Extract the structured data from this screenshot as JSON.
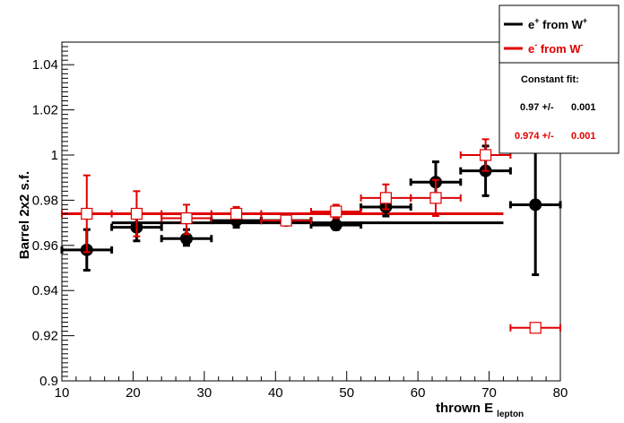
{
  "chart_data": {
    "type": "scatter",
    "title": "",
    "xlabel": "thrown E",
    "xlabel_sub": "lepton",
    "ylabel": "Barrel 2x2 s.f.",
    "xlim": [
      10,
      80
    ],
    "ylim": [
      0.9,
      1.05
    ],
    "xticks": [
      10,
      20,
      30,
      40,
      50,
      60,
      70,
      80
    ],
    "yticks": [
      0.9,
      0.92,
      0.94,
      0.96,
      0.98,
      1,
      1.02,
      1.04
    ],
    "ytick_labels": [
      "0.9",
      "0.92",
      "0.94",
      "0.96",
      "0.98",
      "1",
      "1.02",
      "1.04"
    ],
    "grid": false,
    "legend_position": "top-right",
    "series": [
      {
        "name_main": "e",
        "name_sup": "+",
        "name_mid": " from W",
        "name_sup2": "+",
        "color": "#000000",
        "marker": "filled-circle",
        "points": [
          {
            "x": 13.5,
            "y": 0.958,
            "xerr": 3.5,
            "ylo": 0.949,
            "yhi": 0.967
          },
          {
            "x": 20.5,
            "y": 0.968,
            "xerr": 3.5,
            "ylo": 0.962,
            "yhi": 0.973
          },
          {
            "x": 27.5,
            "y": 0.963,
            "xerr": 3.5,
            "ylo": 0.96,
            "yhi": 0.967
          },
          {
            "x": 34.5,
            "y": 0.971,
            "xerr": 3.5,
            "ylo": 0.968,
            "yhi": 0.973
          },
          {
            "x": 41.5,
            "y": 0.971,
            "xerr": 3.5,
            "ylo": 0.969,
            "yhi": 0.973
          },
          {
            "x": 48.5,
            "y": 0.969,
            "xerr": 3.5,
            "ylo": 0.967,
            "yhi": 0.972
          },
          {
            "x": 55.5,
            "y": 0.977,
            "xerr": 3.5,
            "ylo": 0.973,
            "yhi": 0.981
          },
          {
            "x": 62.5,
            "y": 0.988,
            "xerr": 3.5,
            "ylo": 0.98,
            "yhi": 0.997
          },
          {
            "x": 69.5,
            "y": 0.993,
            "xerr": 3.5,
            "ylo": 0.982,
            "yhi": 1.004
          },
          {
            "x": 76.5,
            "y": 0.978,
            "xerr": 3.5,
            "ylo": 0.947,
            "yhi": 1.009
          }
        ],
        "fit": {
          "value": 0.97,
          "err": 0.001,
          "xmin": 17,
          "xmax": 72
        }
      },
      {
        "name_main": "e",
        "name_sup": "-",
        "name_mid": " from W",
        "name_sup2": "-",
        "color": "#e00000",
        "marker": "open-square",
        "points": [
          {
            "x": 13.5,
            "y": 0.974,
            "xerr": 3.5,
            "ylo": 0.957,
            "yhi": 0.991
          },
          {
            "x": 20.5,
            "y": 0.974,
            "xerr": 3.5,
            "ylo": 0.964,
            "yhi": 0.984
          },
          {
            "x": 27.5,
            "y": 0.972,
            "xerr": 3.5,
            "ylo": 0.965,
            "yhi": 0.978
          },
          {
            "x": 34.5,
            "y": 0.974,
            "xerr": 3.5,
            "ylo": 0.972,
            "yhi": 0.977
          },
          {
            "x": 41.5,
            "y": 0.971,
            "xerr": 3.5,
            "ylo": 0.969,
            "yhi": 0.973
          },
          {
            "x": 48.5,
            "y": 0.975,
            "xerr": 3.5,
            "ylo": 0.972,
            "yhi": 0.978
          },
          {
            "x": 55.5,
            "y": 0.981,
            "xerr": 3.5,
            "ylo": 0.976,
            "yhi": 0.987
          },
          {
            "x": 62.5,
            "y": 0.981,
            "xerr": 3.5,
            "ylo": 0.973,
            "yhi": 0.989
          },
          {
            "x": 69.5,
            "y": 1.0,
            "xerr": 3.5,
            "ylo": 0.993,
            "yhi": 1.007
          },
          {
            "x": 76.5,
            "y": 0.9235,
            "xerr": 3.5,
            "ylo": 0.9235,
            "yhi": 0.9235
          }
        ],
        "fit": {
          "value": 0.974,
          "err": 0.001,
          "xmin": 10,
          "xmax": 72
        }
      }
    ],
    "fit_box": {
      "title": "Constant fit:",
      "rows": [
        {
          "value": "0.97 +/-",
          "err": "0.001",
          "color": "#000000"
        },
        {
          "value": "0.974 +/-",
          "err": "0.001",
          "color": "#e00000"
        }
      ]
    }
  }
}
